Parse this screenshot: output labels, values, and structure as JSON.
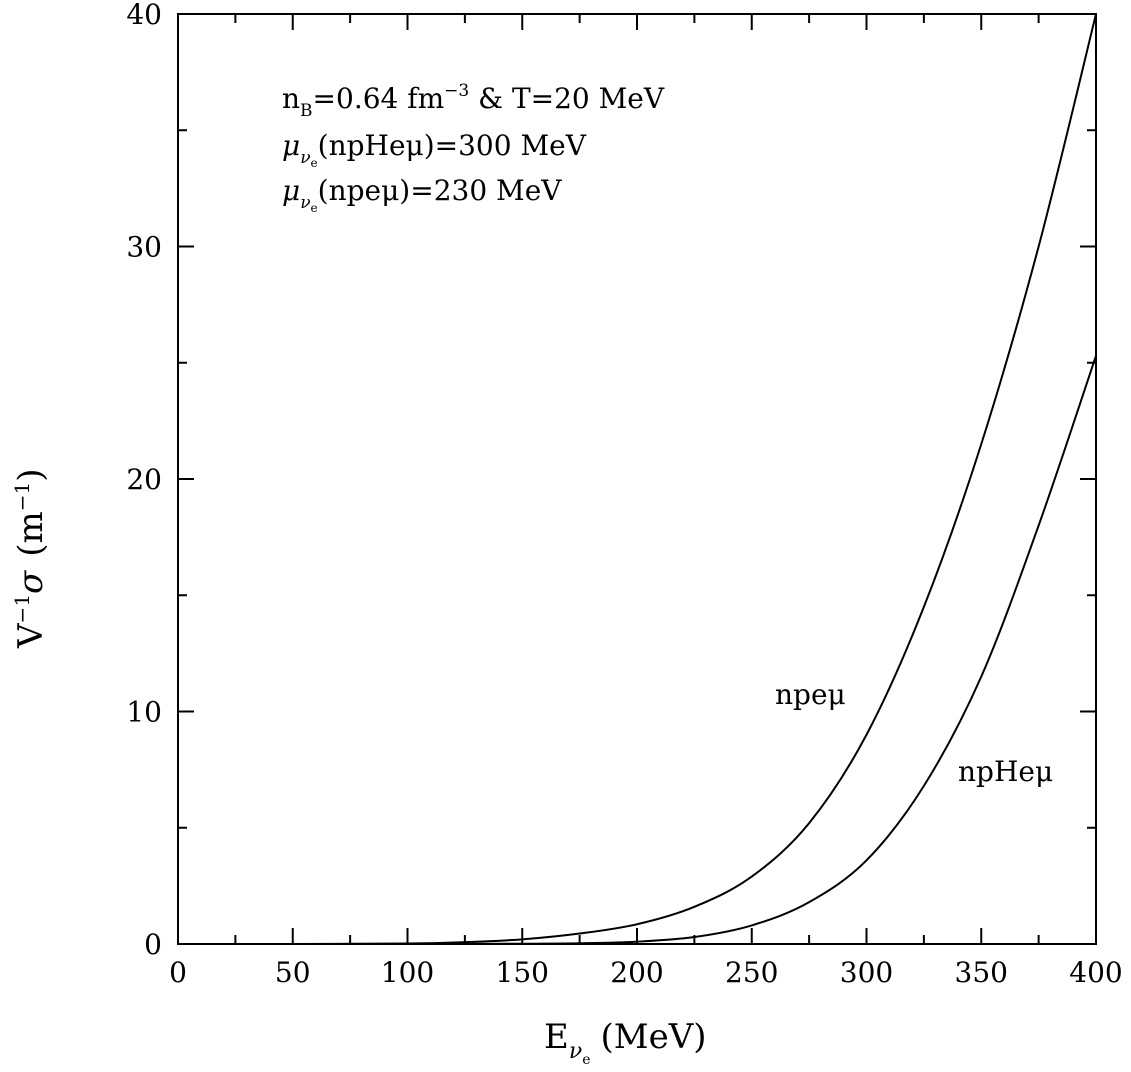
{
  "chart_data": {
    "type": "line",
    "xlabel": {
      "main": "E",
      "sub": "ν",
      "subsub": "e",
      "unit": "(MeV)"
    },
    "ylabel": {
      "main": "V",
      "sup": "−1",
      "sym": "σ",
      "unit_open": "(m",
      "unit_sup": "−1",
      "unit_close": ")"
    },
    "xlim": [
      0,
      400
    ],
    "ylim": [
      0,
      40
    ],
    "xticks_major": [
      0,
      50,
      100,
      150,
      200,
      250,
      300,
      350,
      400
    ],
    "xtick_labels": [
      "0",
      "50",
      "100",
      "150",
      "200",
      "250",
      "300",
      "350",
      "400"
    ],
    "yticks_major": [
      0,
      10,
      20,
      30,
      40
    ],
    "ytick_labels": [
      "0",
      "10",
      "20",
      "30",
      "40"
    ],
    "xticks_minor_step": 25,
    "yticks_minor_step": 5,
    "grid": false,
    "annotations": {
      "line1": {
        "n": "n",
        "nsub": "B",
        "a": "=0.64 fm",
        "asup": "−3",
        "b": " & T=20 MeV"
      },
      "line2": {
        "mu": "μ",
        "sub": "ν",
        "subsub": "e",
        "rest": "(npHeμ)=300 MeV"
      },
      "line3": {
        "mu": "μ",
        "sub": "ν",
        "subsub": "e",
        "rest": "(npeμ)=230 MeV"
      }
    },
    "series": [
      {
        "name": "npeμ",
        "x": [
          0,
          50,
          100,
          125,
          150,
          175,
          200,
          225,
          250,
          275,
          300,
          325,
          350,
          375,
          400
        ],
        "y": [
          0,
          0,
          0.02,
          0.08,
          0.2,
          0.45,
          0.85,
          1.6,
          2.9,
          5.2,
          9.0,
          14.5,
          21.5,
          30.0,
          40.0
        ]
      },
      {
        "name": "npHeμ",
        "x": [
          0,
          100,
          150,
          175,
          200,
          225,
          250,
          275,
          300,
          325,
          350,
          375,
          400
        ],
        "y": [
          0,
          0,
          0.01,
          0.03,
          0.1,
          0.3,
          0.8,
          1.8,
          3.6,
          6.8,
          11.5,
          18.0,
          25.3
        ]
      }
    ]
  }
}
